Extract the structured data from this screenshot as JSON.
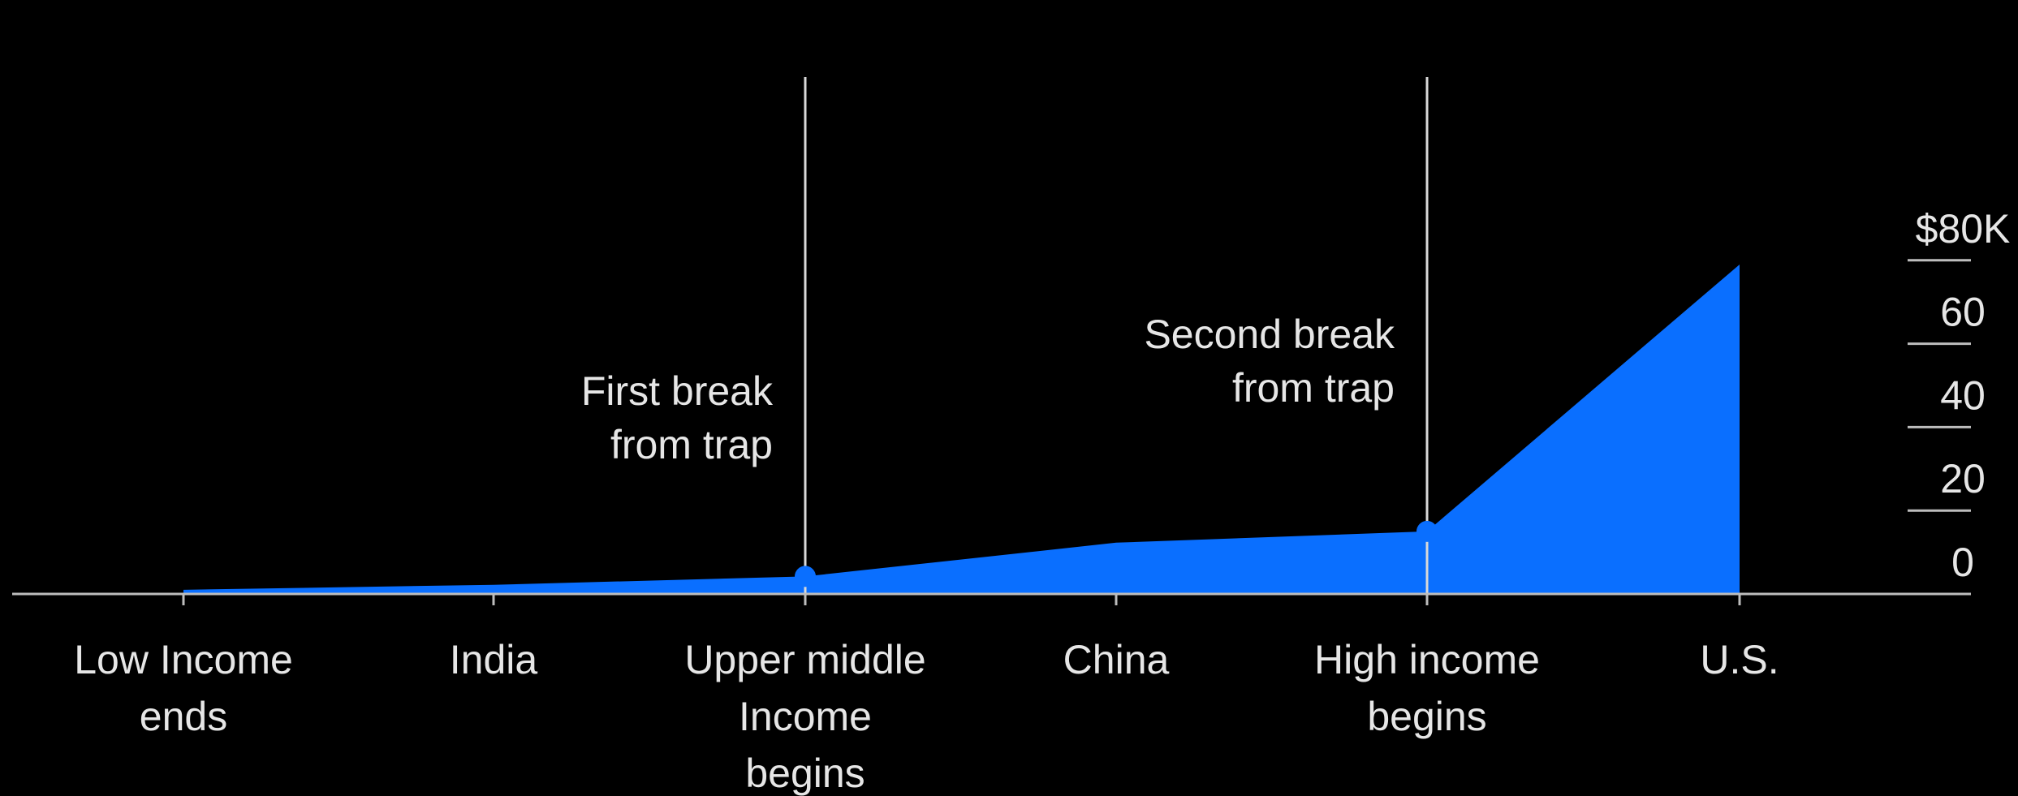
{
  "chart_data": {
    "type": "area",
    "categories": [
      [
        "Low Income",
        "ends"
      ],
      [
        "India"
      ],
      [
        "Upper middle",
        "Income",
        "begins"
      ],
      [
        "China"
      ],
      [
        "High income",
        "begins"
      ],
      [
        "U.S."
      ]
    ],
    "values": [
      1,
      2.2,
      4.2,
      12.3,
      15,
      79
    ],
    "ylim": [
      0,
      80
    ],
    "yticks": [
      {
        "value": 0,
        "label": "0"
      },
      {
        "value": 20,
        "label": "20"
      },
      {
        "value": 40,
        "label": "40"
      },
      {
        "value": 60,
        "label": "60"
      },
      {
        "value": 80,
        "label": "$80K"
      }
    ],
    "annotations": [
      {
        "category_index": 2,
        "lines": [
          "First break",
          "from trap"
        ]
      },
      {
        "category_index": 4,
        "lines": [
          "Second break",
          "from trap"
        ]
      }
    ],
    "grid": false,
    "colors": {
      "background": "#000000",
      "area": "#0A6FFF",
      "axis": "#bdbdbd",
      "text": "#e6e6e6",
      "annotation_line": "#d9d9d9"
    }
  }
}
